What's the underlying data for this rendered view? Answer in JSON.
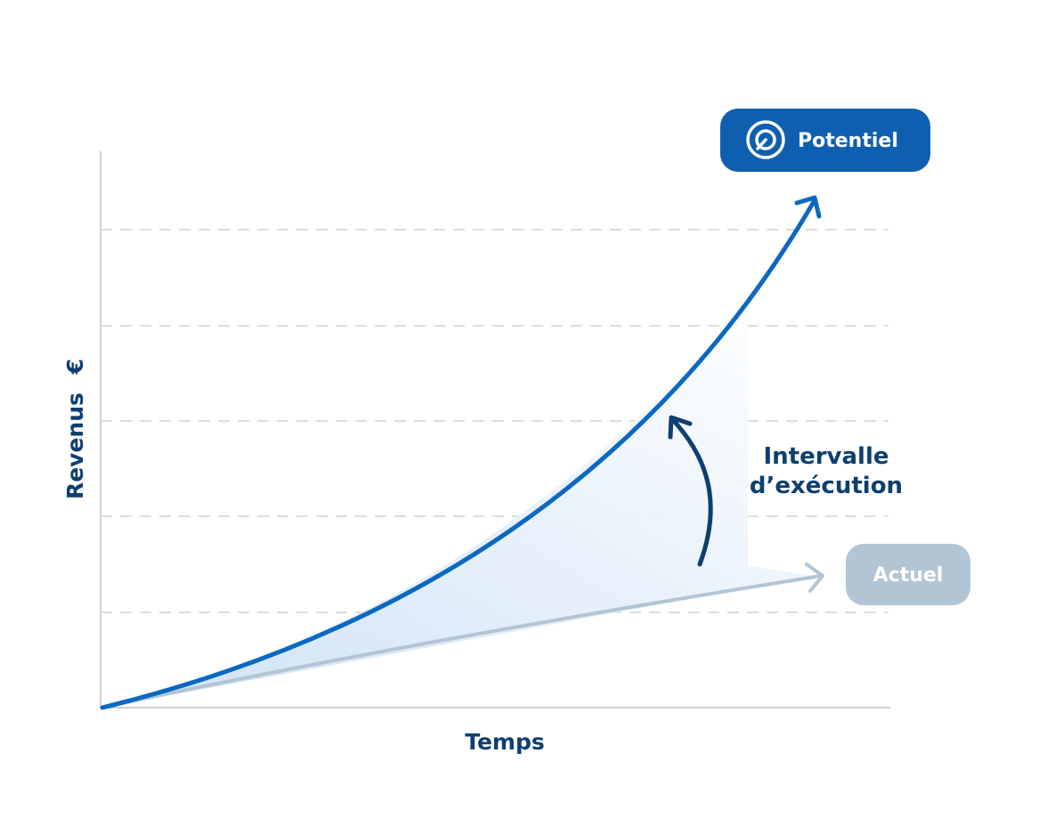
{
  "axes": {
    "y_label": "Revenus",
    "y_unit": "€",
    "x_label": "Temps"
  },
  "annotation": {
    "line1": "Intervalle",
    "line2": "d’exécution"
  },
  "potential_badge": {
    "label": "Potentiel",
    "icon": "target-icon",
    "color": "#0f5fb0"
  },
  "actual_badge": {
    "label": "Actuel",
    "color": "#b3c5d4"
  },
  "colors": {
    "text": "#0d3f6f",
    "potential_curve": "#0c68c0",
    "actual_line": "#b3c5d4",
    "gap_arrow": "#0d3f6f",
    "gridline": "#d2d2d2",
    "axis": "#cfcfcf"
  }
}
